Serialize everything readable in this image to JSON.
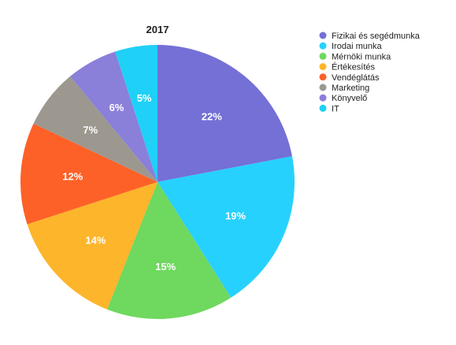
{
  "chart_data": {
    "type": "pie",
    "title": "2017",
    "legend_position": "top-right",
    "slices": [
      {
        "name": "Fizikai és segédmunka",
        "value": 22,
        "label": "22%",
        "color": "#7470d6"
      },
      {
        "name": "Irodai munka",
        "value": 19,
        "label": "19%",
        "color": "#27d1fd"
      },
      {
        "name": "Mérnöki munka",
        "value": 15,
        "label": "15%",
        "color": "#6fd85e"
      },
      {
        "name": "Értékesítés",
        "value": 14,
        "label": "14%",
        "color": "#fdb52b"
      },
      {
        "name": "Vendéglátás",
        "value": 12,
        "label": "12%",
        "color": "#fd6127"
      },
      {
        "name": "Marketing",
        "value": 7,
        "label": "7%",
        "color": "#9c9890"
      },
      {
        "name": "Könyvelő",
        "value": 6,
        "label": "6%",
        "color": "#8a7fd9"
      },
      {
        "name": "IT",
        "value": 5,
        "label": "5%",
        "color": "#1fd0f7"
      }
    ]
  }
}
